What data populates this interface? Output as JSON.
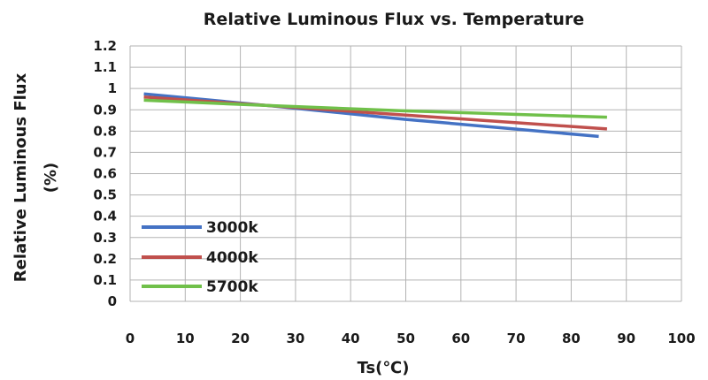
{
  "chart_data": {
    "type": "line",
    "title": "Relative Luminous Flux vs. Temperature",
    "xlabel": "Ts(℃)",
    "ylabel_line1": "Relative Luminous Flux",
    "ylabel_line2": "(%)",
    "xlim": [
      0,
      100
    ],
    "ylim": [
      0,
      1.2
    ],
    "x_ticks": [
      0,
      10,
      20,
      30,
      40,
      50,
      60,
      70,
      80,
      90,
      100
    ],
    "x_tick_labels": [
      "0",
      "10",
      "20",
      "30",
      "40",
      "50",
      "60",
      "70",
      "80",
      "90",
      "100"
    ],
    "y_ticks": [
      0,
      0.1,
      0.2,
      0.3,
      0.4,
      0.5,
      0.6,
      0.7,
      0.8,
      0.9,
      1.0,
      1.1,
      1.2
    ],
    "y_tick_labels": [
      "0",
      "0.1",
      "0.2",
      "0.3",
      "0.4",
      "0.5",
      "0.6",
      "0.7",
      "0.8",
      "0.9",
      "1",
      "1.1",
      "1.2"
    ],
    "grid": true,
    "legend_position": "bottom-left",
    "series": [
      {
        "name": "3000k",
        "color": "#4472c4",
        "x": [
          2.5,
          25,
          50,
          85
        ],
        "y": [
          0.975,
          0.92,
          0.855,
          0.775
        ]
      },
      {
        "name": "4000k",
        "color": "#c0504d",
        "x": [
          2.5,
          25,
          50,
          86.5
        ],
        "y": [
          0.96,
          0.92,
          0.875,
          0.81
        ]
      },
      {
        "name": "5700k",
        "color": "#70c04a",
        "x": [
          2.5,
          25,
          50,
          86.5
        ],
        "y": [
          0.945,
          0.92,
          0.895,
          0.865
        ]
      }
    ]
  }
}
